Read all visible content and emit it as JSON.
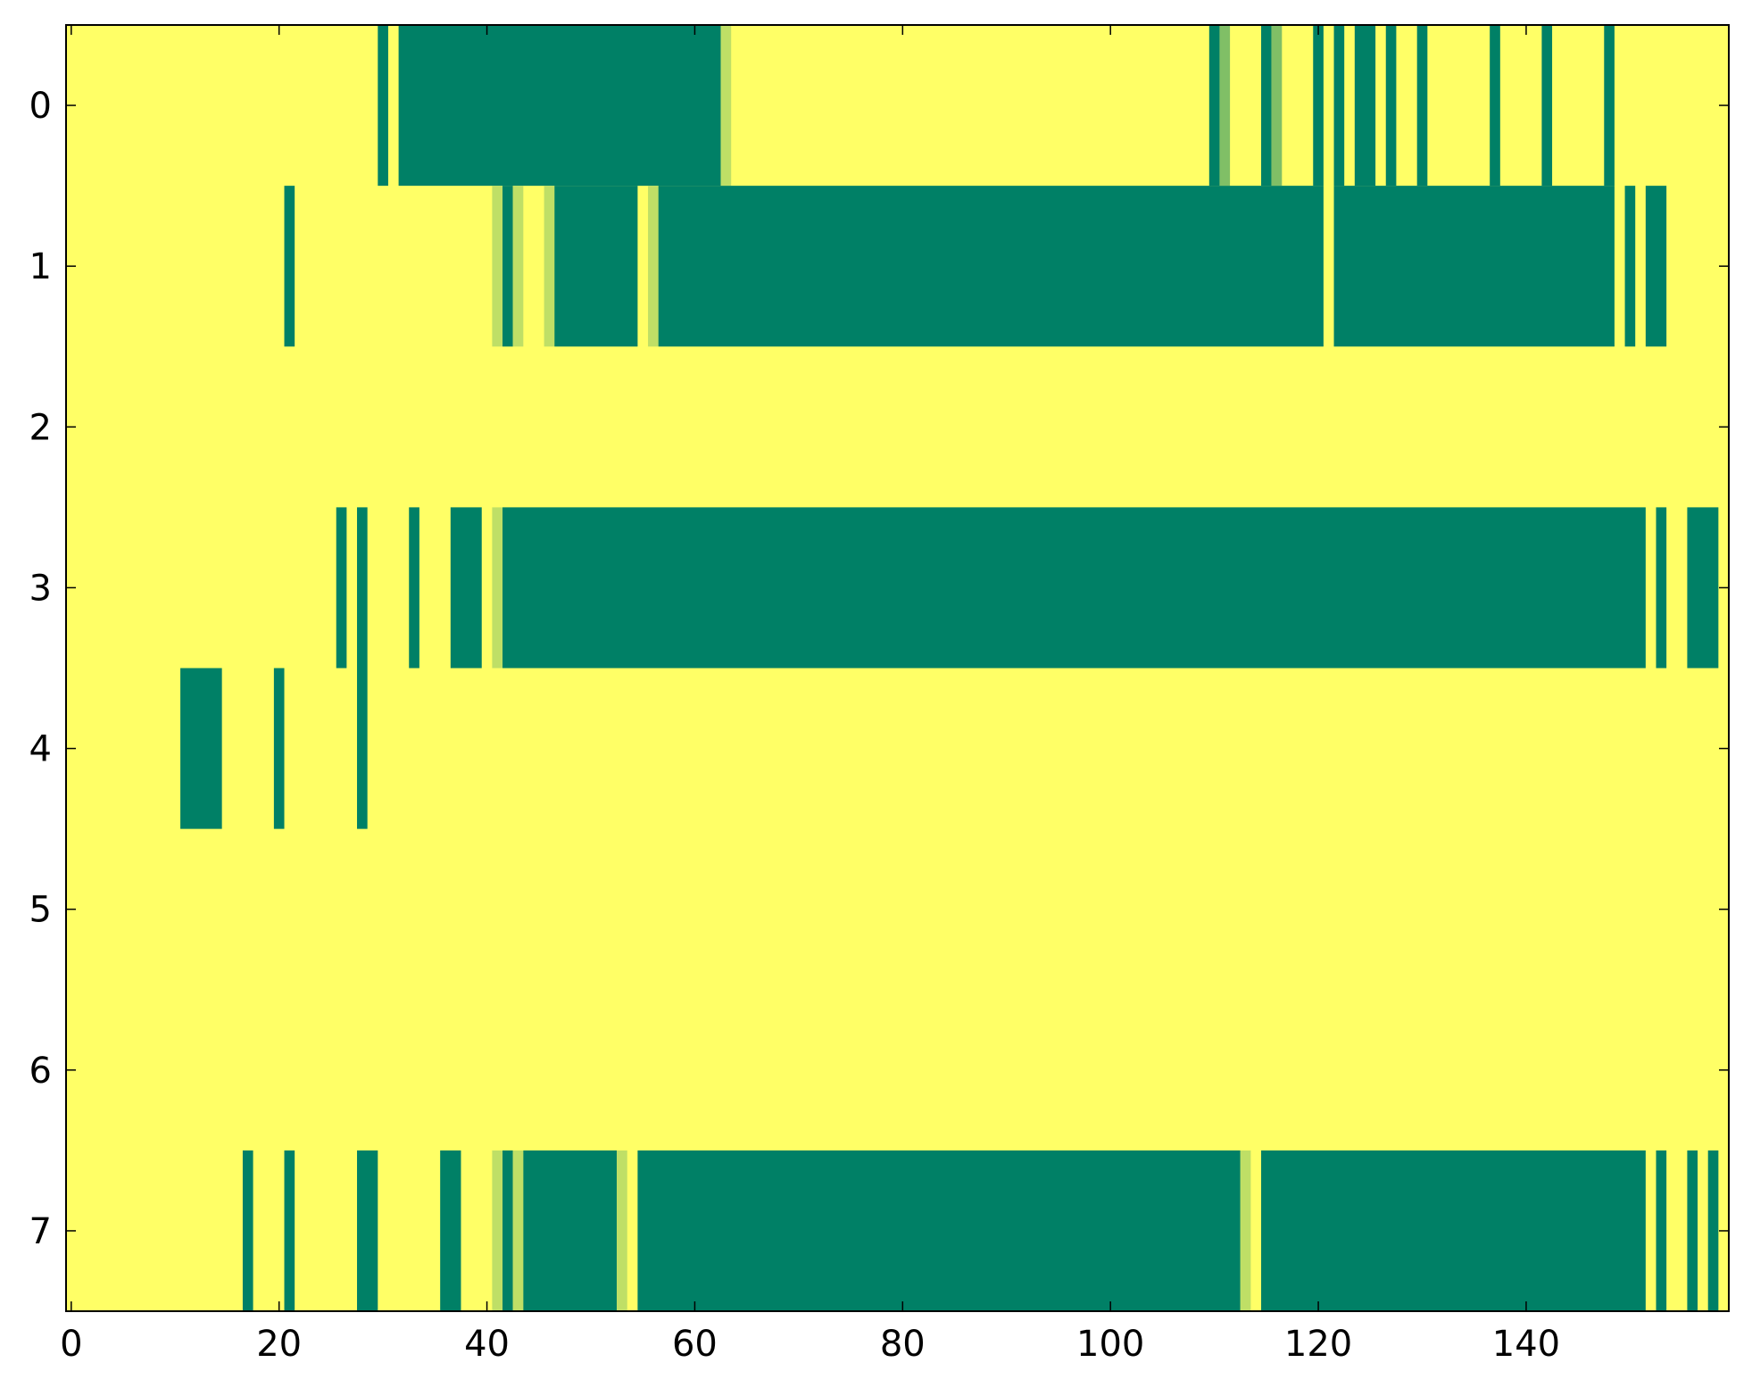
{
  "chart_data": {
    "type": "heatmap",
    "title": "",
    "xlabel": "",
    "ylabel": "",
    "xlim": [
      -0.5,
      159.5
    ],
    "ylim": [
      7.5,
      -0.5
    ],
    "x_ticks": [
      0,
      20,
      40,
      60,
      80,
      100,
      120,
      140
    ],
    "x_tick_labels": [
      "0",
      "20",
      "40",
      "60",
      "80",
      "100",
      "120",
      "140"
    ],
    "y_ticks": [
      0,
      1,
      2,
      3,
      4,
      5,
      6,
      7
    ],
    "y_tick_labels": [
      "0",
      "1",
      "2",
      "3",
      "4",
      "5",
      "6",
      "7"
    ],
    "colormap": {
      "low": "#ffff66",
      "high": "#008066",
      "mid_values": {
        "0.25": "#bfdf66",
        "0.5": "#80bf66"
      }
    },
    "background_value": 0,
    "rows": [
      {
        "row": 0,
        "segments": [
          [
            30,
            30,
            1
          ],
          [
            32,
            62,
            1
          ],
          [
            63,
            63,
            0.25
          ],
          [
            110,
            110,
            1
          ],
          [
            111,
            111,
            0.5
          ],
          [
            115,
            115,
            1
          ],
          [
            116,
            116,
            0.5
          ],
          [
            120,
            120,
            1
          ],
          [
            122,
            122,
            1
          ],
          [
            124,
            125,
            1
          ],
          [
            127,
            127,
            1
          ],
          [
            130,
            130,
            1
          ],
          [
            137,
            137,
            1
          ],
          [
            142,
            142,
            1
          ],
          [
            148,
            148,
            1
          ]
        ]
      },
      {
        "row": 1,
        "segments": [
          [
            21,
            21,
            1
          ],
          [
            41,
            41,
            0.25
          ],
          [
            42,
            42,
            1
          ],
          [
            43,
            43,
            0.25
          ],
          [
            46,
            46,
            0.25
          ],
          [
            47,
            54,
            1
          ],
          [
            56,
            56,
            0.25
          ],
          [
            57,
            120,
            1
          ],
          [
            122,
            148,
            1
          ],
          [
            150,
            150,
            1
          ],
          [
            152,
            153,
            1
          ]
        ]
      },
      {
        "row": 2,
        "segments": []
      },
      {
        "row": 3,
        "segments": [
          [
            26,
            26,
            1
          ],
          [
            28,
            28,
            1
          ],
          [
            33,
            33,
            1
          ],
          [
            37,
            39,
            1
          ],
          [
            41,
            41,
            0.25
          ],
          [
            42,
            151,
            1
          ],
          [
            153,
            153,
            1
          ],
          [
            156,
            158,
            1
          ]
        ]
      },
      {
        "row": 4,
        "segments": [
          [
            11,
            14,
            1
          ],
          [
            20,
            20,
            1
          ],
          [
            28,
            28,
            1
          ]
        ]
      },
      {
        "row": 5,
        "segments": []
      },
      {
        "row": 6,
        "segments": []
      },
      {
        "row": 7,
        "segments": [
          [
            17,
            17,
            1
          ],
          [
            21,
            21,
            1
          ],
          [
            28,
            29,
            1
          ],
          [
            36,
            37,
            1
          ],
          [
            41,
            41,
            0.25
          ],
          [
            42,
            42,
            1
          ],
          [
            43,
            43,
            0.25
          ],
          [
            44,
            52,
            1
          ],
          [
            53,
            53,
            0.25
          ],
          [
            55,
            112,
            1
          ],
          [
            113,
            113,
            0.25
          ],
          [
            115,
            151,
            1
          ],
          [
            153,
            153,
            1
          ],
          [
            156,
            156,
            1
          ],
          [
            158,
            158,
            1
          ]
        ]
      }
    ]
  }
}
